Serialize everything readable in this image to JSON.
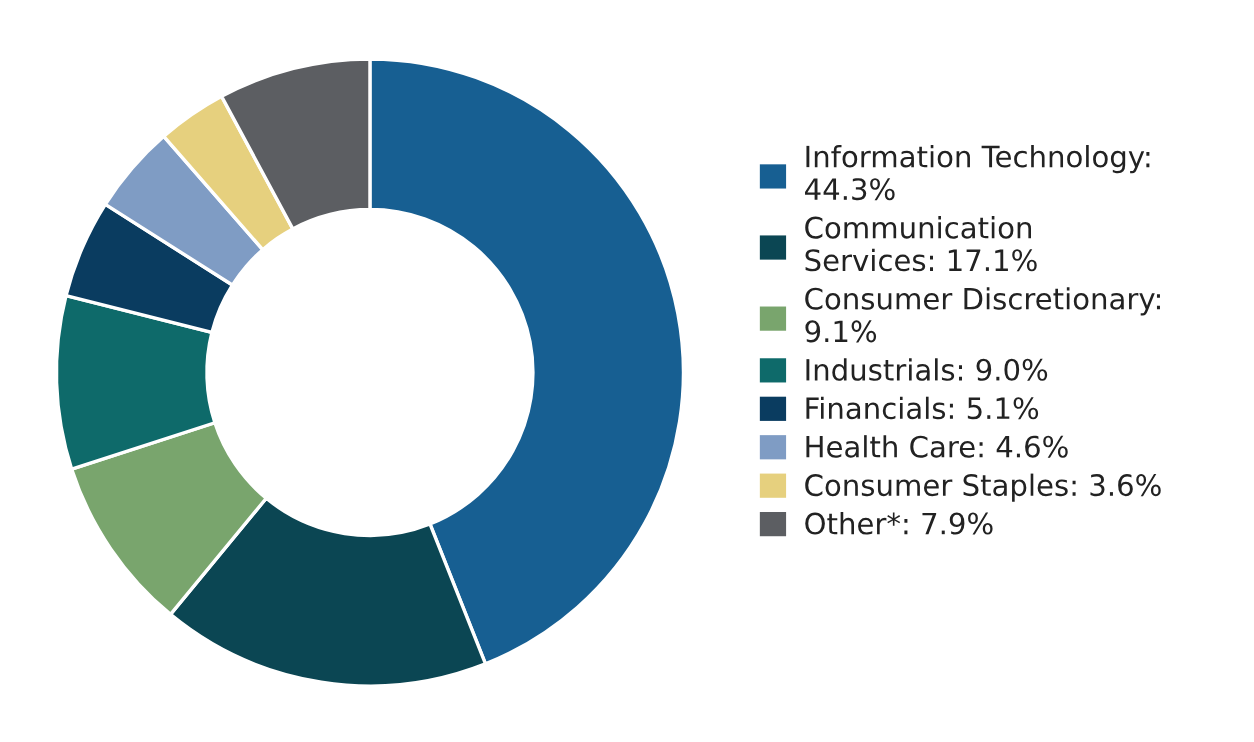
{
  "chart_data": {
    "type": "donut",
    "categories": [
      "Information Technology:\n44.3%",
      "Communication\nServices: 17.1%",
      "Consumer Discretionary:\n9.1%",
      "Industrials: 9.0%",
      "Financials: 5.1%",
      "Health Care: 4.6%",
      "Consumer Staples: 3.6%",
      "Other*: 7.9%"
    ],
    "values": [
      44.3,
      17.1,
      9.1,
      9.0,
      5.1,
      4.6,
      3.6,
      7.9
    ],
    "colors": [
      "#175f92",
      "#0b4653",
      "#79a56d",
      "#0e6a6a",
      "#0a3c60",
      "#7f9cc4",
      "#e6d07e",
      "#5c5e62"
    ],
    "legend": "right"
  }
}
